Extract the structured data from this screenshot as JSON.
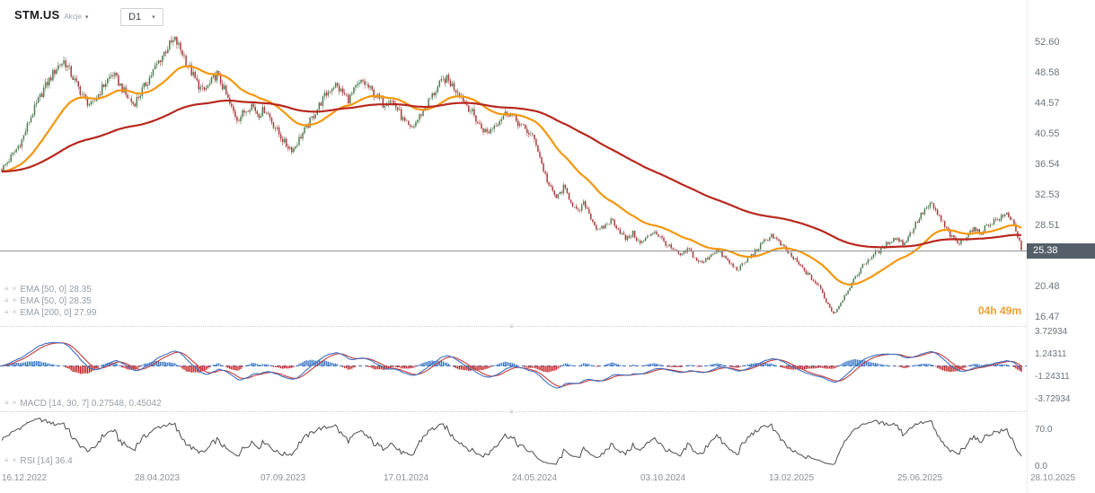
{
  "header": {
    "symbol": "STM.US",
    "market_type": "Akcje",
    "timeframe": "D1"
  },
  "price_axis": {
    "labels": [
      "52.60",
      "48.58",
      "44.57",
      "40.55",
      "36.54",
      "32.53",
      "28.51",
      "20.48",
      "16.47"
    ],
    "current_price": "25.38"
  },
  "session_countdown": {
    "text": "04h 49m"
  },
  "indicators": {
    "overlays": [
      {
        "label": "EMA [50, 0] 28.35"
      },
      {
        "label": "EMA [50, 0] 28.35"
      },
      {
        "label": "EMA [200, 0] 27.99"
      }
    ],
    "macd": {
      "label": "MACD [14, 30, 7] 0.27548, 0.45042"
    },
    "rsi": {
      "label": "RSI [14] 36.4"
    }
  },
  "time_axis": {
    "labels": [
      "16.12.2022",
      "28.04.2023",
      "07.09.2023",
      "17.01.2024",
      "24.05.2024",
      "03.10.2024",
      "13.02.2025",
      "25.06.2025",
      "28.10.2025"
    ]
  },
  "chart_data": {
    "type": "candlestick",
    "symbol": "STM.US",
    "timeframe": "D1",
    "date_range": [
      "16.12.2022",
      "28.10.2025"
    ],
    "price_axis_values": [
      52.6,
      48.58,
      44.57,
      40.55,
      36.54,
      32.53,
      28.51,
      20.48,
      16.47
    ],
    "last_price": 25.38,
    "weekly_closes": [
      36.0,
      37.2,
      38.5,
      40.0,
      42.5,
      44.5,
      46.5,
      48.0,
      49.5,
      50.3,
      48.5,
      46.8,
      45.2,
      44.3,
      46.0,
      47.5,
      48.6,
      47.2,
      45.6,
      44.6,
      46.0,
      47.6,
      49.2,
      50.8,
      52.2,
      53.0,
      51.4,
      49.4,
      47.6,
      46.2,
      47.2,
      48.6,
      46.6,
      44.2,
      42.6,
      43.6,
      44.6,
      43.2,
      44.0,
      42.2,
      40.6,
      39.2,
      38.6,
      40.2,
      41.6,
      43.2,
      44.8,
      46.2,
      47.2,
      46.2,
      45.2,
      46.6,
      47.6,
      46.6,
      45.6,
      44.6,
      45.4,
      44.0,
      42.2,
      41.2,
      42.6,
      44.2,
      45.6,
      47.0,
      48.0,
      47.0,
      46.0,
      44.6,
      43.2,
      41.6,
      40.8,
      41.8,
      42.8,
      43.6,
      42.6,
      41.6,
      40.8,
      39.6,
      36.2,
      33.6,
      32.2,
      33.6,
      32.0,
      30.2,
      31.6,
      29.6,
      27.8,
      28.6,
      29.4,
      28.0,
      26.8,
      27.6,
      26.2,
      27.0,
      28.0,
      27.0,
      26.0,
      25.2,
      24.6,
      25.6,
      24.2,
      23.6,
      24.6,
      25.4,
      24.6,
      23.6,
      22.8,
      23.6,
      24.6,
      25.6,
      26.6,
      27.4,
      26.4,
      25.4,
      24.4,
      23.4,
      22.4,
      21.4,
      20.4,
      18.4,
      17.0,
      18.6,
      20.2,
      21.6,
      23.2,
      24.2,
      25.0,
      25.6,
      26.6,
      27.0,
      26.2,
      27.6,
      29.2,
      30.6,
      31.4,
      30.0,
      28.4,
      27.0,
      26.2,
      27.2,
      28.2,
      27.6,
      28.6,
      29.2,
      29.6,
      30.2,
      28.8,
      25.38
    ],
    "overlays": [
      {
        "name": "EMA",
        "period": 50,
        "offset": 0,
        "last": 28.35,
        "color": "#f2970f"
      },
      {
        "name": "EMA",
        "period": 50,
        "offset": 0,
        "last": 28.35,
        "color": "#f2970f"
      },
      {
        "name": "EMA",
        "period": 200,
        "offset": 0,
        "last": 27.99,
        "color": "#b7281e"
      }
    ],
    "macd": {
      "params": [
        14,
        30,
        7
      ],
      "last_values": [
        0.27548,
        0.45042
      ],
      "axis": [
        "3.72934",
        "1.24311",
        "-1.24311",
        "-3.72934"
      ]
    },
    "rsi": {
      "period": 14,
      "last_value": 36.4,
      "axis": [
        "70.0",
        "0.0"
      ]
    },
    "colors": {
      "up": "#4e7d52",
      "down": "#aa3a3a",
      "ema50": "#f2970f",
      "ema200": "#b7281e",
      "macd_line": "#3f6fc0",
      "macd_signal": "#c23b3b",
      "hist_pos": "#3a78c8",
      "hist_neg": "#c42222",
      "rsi_line": "#4d4d4d",
      "price_line": "#8f9397",
      "badge_bg": "#555f69",
      "countdown": "#f09d2e"
    }
  }
}
